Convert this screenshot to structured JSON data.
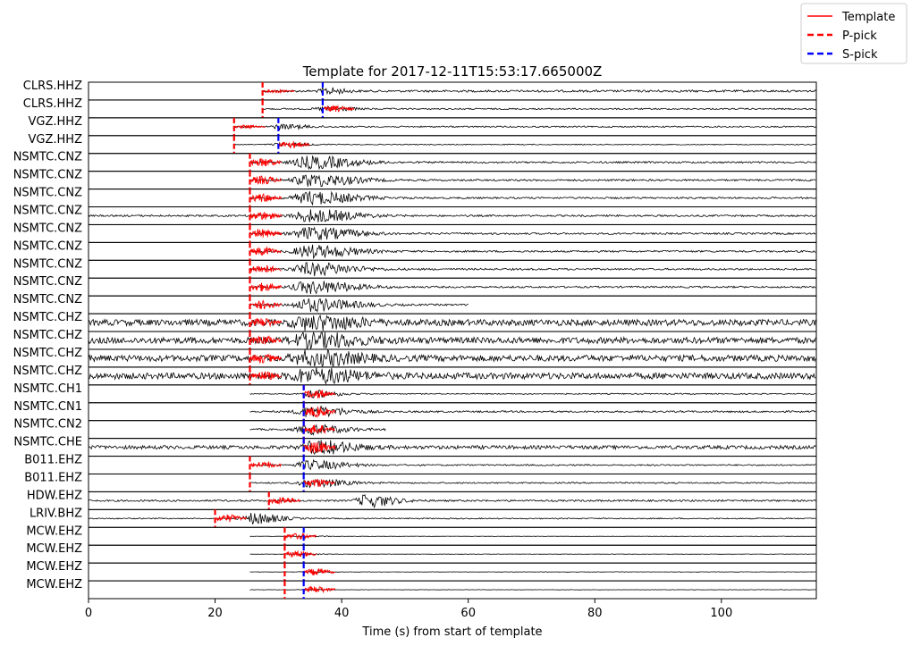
{
  "chart_data": {
    "type": "line",
    "title": "Template for 2017-12-11T15:53:17.665000Z",
    "xlabel": "Time (s) from start of template",
    "ylabel": "",
    "xlim": [
      0,
      115
    ],
    "xticks": [
      0,
      20,
      40,
      60,
      80,
      100
    ],
    "grid": false,
    "legend_position": "top-right",
    "legend": [
      {
        "label": "Template",
        "style": "solid",
        "color": "#ff0000"
      },
      {
        "label": "P-pick",
        "style": "dashed",
        "color": "#ff0000"
      },
      {
        "label": "S-pick",
        "style": "dashed",
        "color": "#0000ff"
      }
    ],
    "colors": {
      "data": "#000000",
      "template": "#ff0000",
      "p_pick": "#ff0000",
      "s_pick": "#0000ff"
    },
    "traces": [
      {
        "label": "CLRS.HHZ",
        "data_start": 27.5,
        "data_end": 115,
        "data_amp": 0.12,
        "burst": 37.5,
        "burst_amp": 0.35,
        "burst_width": 2,
        "template": [
          27.5,
          32.5
        ],
        "template_amp": 0.2,
        "p_pick": 27.5,
        "s_pick": 37
      },
      {
        "label": "CLRS.HHZ",
        "data_start": 27.5,
        "data_end": 115,
        "data_amp": 0.08,
        "burst": 37.5,
        "burst_amp": 0.25,
        "burst_width": 3,
        "template": [
          37,
          42
        ],
        "template_amp": 0.35,
        "p_pick": 27.5,
        "s_pick": 37
      },
      {
        "label": "VGZ.HHZ",
        "data_start": 23,
        "data_end": 115,
        "data_amp": 0.08,
        "burst": 30.5,
        "burst_amp": 0.25,
        "burst_width": 3,
        "template": [
          23,
          28
        ],
        "template_amp": 0.2,
        "p_pick": 23,
        "s_pick": 30
      },
      {
        "label": "VGZ.HHZ",
        "data_start": 23,
        "data_end": 115,
        "data_amp": 0.05,
        "burst": 30.5,
        "burst_amp": 0.2,
        "burst_width": 3,
        "template": [
          30,
          35
        ],
        "template_amp": 0.4,
        "p_pick": 23,
        "s_pick": 30
      },
      {
        "label": "NSMTC.CNZ",
        "data_start": 25.5,
        "data_end": 115,
        "data_amp": 0.1,
        "burst": 35,
        "burst_amp": 0.7,
        "burst_width": 5,
        "template": [
          25.5,
          30.5
        ],
        "template_amp": 0.5,
        "p_pick": 25.5,
        "s_pick": null
      },
      {
        "label": "NSMTC.CNZ",
        "data_start": 25.5,
        "data_end": 115,
        "data_amp": 0.1,
        "burst": 35,
        "burst_amp": 0.7,
        "burst_width": 5,
        "template": [
          25.5,
          30.5
        ],
        "template_amp": 0.5,
        "p_pick": 25.5,
        "s_pick": null
      },
      {
        "label": "NSMTC.CNZ",
        "data_start": 25.5,
        "data_end": 115,
        "data_amp": 0.1,
        "burst": 35,
        "burst_amp": 0.7,
        "burst_width": 5,
        "template": [
          25.5,
          30.5
        ],
        "template_amp": 0.5,
        "p_pick": 25.5,
        "s_pick": null
      },
      {
        "label": "NSMTC.CNZ",
        "data_start": 0,
        "data_end": 115,
        "data_amp": 0.1,
        "burst": 35,
        "burst_amp": 0.7,
        "burst_width": 5,
        "template": [
          25.5,
          30.5
        ],
        "template_amp": 0.5,
        "p_pick": 25.5,
        "s_pick": null
      },
      {
        "label": "NSMTC.CNZ",
        "data_start": 25.5,
        "data_end": 115,
        "data_amp": 0.1,
        "burst": 35,
        "burst_amp": 0.7,
        "burst_width": 5,
        "template": [
          25.5,
          30.5
        ],
        "template_amp": 0.5,
        "p_pick": 25.5,
        "s_pick": null
      },
      {
        "label": "NSMTC.CNZ",
        "data_start": 25.5,
        "data_end": 115,
        "data_amp": 0.1,
        "burst": 35,
        "burst_amp": 0.7,
        "burst_width": 5,
        "template": [
          25.5,
          30.5
        ],
        "template_amp": 0.5,
        "p_pick": 25.5,
        "s_pick": null
      },
      {
        "label": "NSMTC.CNZ",
        "data_start": 25.5,
        "data_end": 115,
        "data_amp": 0.1,
        "burst": 35,
        "burst_amp": 0.7,
        "burst_width": 5,
        "template": [
          25.5,
          30.5
        ],
        "template_amp": 0.5,
        "p_pick": 25.5,
        "s_pick": null
      },
      {
        "label": "NSMTC.CNZ",
        "data_start": 25.5,
        "data_end": 115,
        "data_amp": 0.1,
        "burst": 35,
        "burst_amp": 0.7,
        "burst_width": 5,
        "template": [
          25.5,
          30.5
        ],
        "template_amp": 0.5,
        "p_pick": 25.5,
        "s_pick": null
      },
      {
        "label": "NSMTC.CNZ",
        "data_start": 25.5,
        "data_end": 60,
        "data_amp": 0.1,
        "burst": 35,
        "burst_amp": 0.7,
        "burst_width": 5,
        "template": [
          25.5,
          30.5
        ],
        "template_amp": 0.5,
        "p_pick": 25.5,
        "s_pick": null
      },
      {
        "label": "NSMTC.CHZ",
        "data_start": 0,
        "data_end": 115,
        "data_amp": 0.35,
        "burst": 35,
        "burst_amp": 0.8,
        "burst_width": 5,
        "template": [
          25.5,
          30.5
        ],
        "template_amp": 0.55,
        "p_pick": 25.5,
        "s_pick": null
      },
      {
        "label": "NSMTC.CHZ",
        "data_start": 0,
        "data_end": 115,
        "data_amp": 0.35,
        "burst": 35,
        "burst_amp": 0.8,
        "burst_width": 5,
        "template": [
          25.5,
          30.5
        ],
        "template_amp": 0.55,
        "p_pick": 25.5,
        "s_pick": null
      },
      {
        "label": "NSMTC.CHZ",
        "data_start": 0,
        "data_end": 115,
        "data_amp": 0.35,
        "burst": 35,
        "burst_amp": 0.8,
        "burst_width": 5,
        "template": [
          25.5,
          30.5
        ],
        "template_amp": 0.55,
        "p_pick": 25.5,
        "s_pick": null
      },
      {
        "label": "NSMTC.CHZ",
        "data_start": 0,
        "data_end": 115,
        "data_amp": 0.35,
        "burst": 35,
        "burst_amp": 0.8,
        "burst_width": 5,
        "template": [
          25.5,
          30.5
        ],
        "template_amp": 0.55,
        "p_pick": 25.5,
        "s_pick": null
      },
      {
        "label": "NSMTC.CH1",
        "data_start": 25.5,
        "data_end": 115,
        "data_amp": 0.06,
        "burst": 35.5,
        "burst_amp": 0.4,
        "burst_width": 3,
        "template": [
          34,
          39
        ],
        "template_amp": 0.5,
        "p_pick": 34,
        "s_pick": 34
      },
      {
        "label": "NSMTC.CN1",
        "data_start": 25.5,
        "data_end": 115,
        "data_amp": 0.1,
        "burst": 35,
        "burst_amp": 0.6,
        "burst_width": 4,
        "template": [
          34,
          39
        ],
        "template_amp": 0.6,
        "p_pick": 34,
        "s_pick": 34
      },
      {
        "label": "NSMTC.CN2",
        "data_start": 25.5,
        "data_end": 47,
        "data_amp": 0.1,
        "burst": 35,
        "burst_amp": 0.5,
        "burst_width": 4,
        "template": [
          34,
          39
        ],
        "template_amp": 0.55,
        "p_pick": 34,
        "s_pick": 34
      },
      {
        "label": "NSMTC.CHE",
        "data_start": 0,
        "data_end": 115,
        "data_amp": 0.2,
        "burst": 36,
        "burst_amp": 0.7,
        "burst_width": 4,
        "template": [
          34,
          39
        ],
        "template_amp": 0.7,
        "p_pick": 34,
        "s_pick": 34
      },
      {
        "label": "B011.EHZ",
        "data_start": 25.5,
        "data_end": 115,
        "data_amp": 0.08,
        "burst": 35,
        "burst_amp": 0.5,
        "burst_width": 4,
        "template": [
          25.5,
          30.5
        ],
        "template_amp": 0.4,
        "p_pick": 25.5,
        "s_pick": 34
      },
      {
        "label": "B011.EHZ",
        "data_start": 25.5,
        "data_end": 115,
        "data_amp": 0.08,
        "burst": 35,
        "burst_amp": 0.45,
        "burst_width": 4,
        "template": [
          34,
          39
        ],
        "template_amp": 0.5,
        "p_pick": 25.5,
        "s_pick": 34
      },
      {
        "label": "HDW.EHZ",
        "data_start": 0,
        "data_end": 115,
        "data_amp": 0.1,
        "burst": 44,
        "burst_amp": 0.7,
        "burst_width": 3,
        "template": [
          28.5,
          33.5
        ],
        "template_amp": 0.45,
        "p_pick": 28.5,
        "s_pick": null
      },
      {
        "label": "LRIV.BHZ",
        "data_start": 0,
        "data_end": 115,
        "data_amp": 0.06,
        "burst": 26,
        "burst_amp": 0.65,
        "burst_width": 3,
        "template": [
          20,
          25
        ],
        "template_amp": 0.45,
        "p_pick": 20,
        "s_pick": null
      },
      {
        "label": "MCW.EHZ",
        "data_start": 25.5,
        "data_end": 115,
        "data_amp": 0.02,
        "burst": 34.5,
        "burst_amp": 0.08,
        "burst_width": 2,
        "template": [
          31,
          36
        ],
        "template_amp": 0.35,
        "p_pick": 31,
        "s_pick": 34
      },
      {
        "label": "MCW.EHZ",
        "data_start": 25.5,
        "data_end": 115,
        "data_amp": 0.02,
        "burst": 34.5,
        "burst_amp": 0.08,
        "burst_width": 2,
        "template": [
          31,
          36
        ],
        "template_amp": 0.35,
        "p_pick": 31,
        "s_pick": 34
      },
      {
        "label": "MCW.EHZ",
        "data_start": 25.5,
        "data_end": 115,
        "data_amp": 0.02,
        "burst": 34.5,
        "burst_amp": 0.08,
        "burst_width": 2,
        "template": [
          34,
          39
        ],
        "template_amp": 0.4,
        "p_pick": 31,
        "s_pick": 34
      },
      {
        "label": "MCW.EHZ",
        "data_start": 25.5,
        "data_end": 115,
        "data_amp": 0.02,
        "burst": 34.5,
        "burst_amp": 0.08,
        "burst_width": 2,
        "template": [
          34,
          39
        ],
        "template_amp": 0.4,
        "p_pick": 31,
        "s_pick": 34
      }
    ]
  }
}
